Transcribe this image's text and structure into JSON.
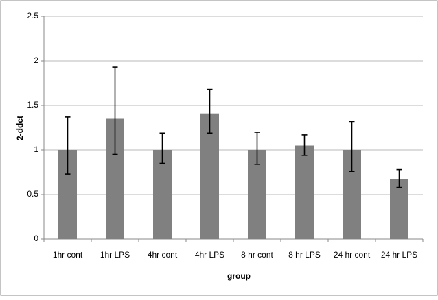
{
  "chart_data": {
    "type": "bar",
    "y_label": "2-ddct",
    "x_label": "group",
    "categories": [
      "1hr cont",
      "1hr LPS",
      "4hr cont",
      "4hr LPS",
      "8 hr cont",
      "8 hr LPS",
      "24 hr cont",
      "24 hr LPS"
    ],
    "values": [
      1.0,
      1.35,
      1.0,
      1.41,
      1.0,
      1.05,
      1.0,
      0.67
    ],
    "error_plus": [
      0.37,
      0.58,
      0.19,
      0.27,
      0.2,
      0.12,
      0.32,
      0.11
    ],
    "error_minus": [
      0.27,
      0.4,
      0.15,
      0.22,
      0.16,
      0.11,
      0.24,
      0.09
    ],
    "color": "#808080",
    "ylim": [
      0,
      2.5
    ],
    "yticks": [
      0,
      0.5,
      1,
      1.5,
      2,
      2.5
    ],
    "grid": true
  }
}
